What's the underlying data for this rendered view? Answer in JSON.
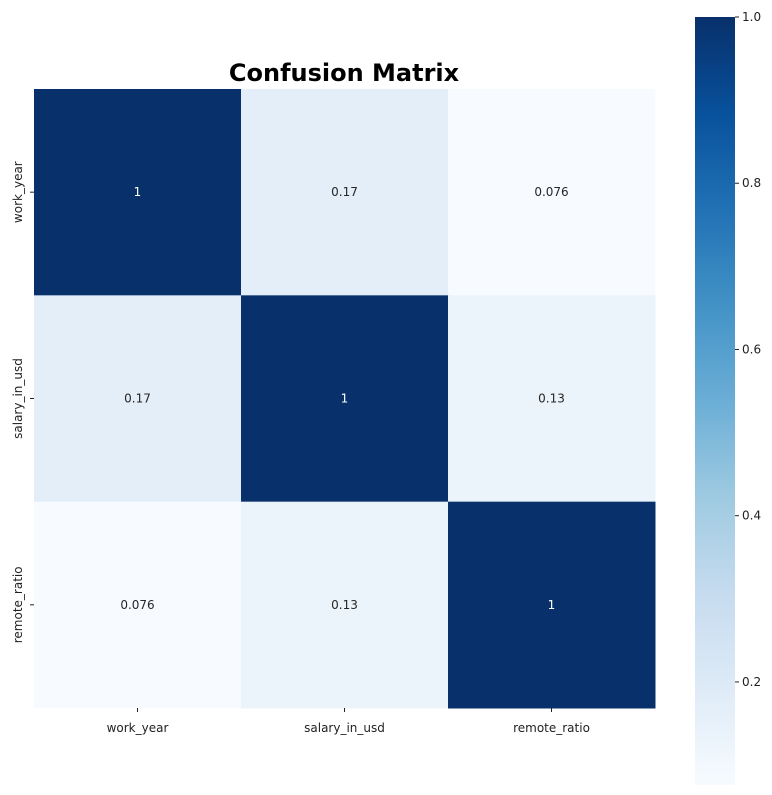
{
  "chart_data": {
    "type": "heatmap",
    "title": "Confusion Matrix",
    "xlabel": "",
    "ylabel": "",
    "x_labels": [
      "work_year",
      "salary_in_usd",
      "remote_ratio"
    ],
    "y_labels": [
      "work_year",
      "salary_in_usd",
      "remote_ratio"
    ],
    "values": [
      [
        1,
        0.17,
        0.076
      ],
      [
        0.17,
        1,
        0.13
      ],
      [
        0.076,
        0.13,
        1
      ]
    ],
    "annotations": [
      [
        "1",
        "0.17",
        "0.076"
      ],
      [
        "0.17",
        "1",
        "0.13"
      ],
      [
        "0.076",
        "0.13",
        "1"
      ]
    ],
    "colormap": "Blues",
    "color_range": [
      0.076,
      1.0
    ],
    "colorbar": {
      "ticks": [
        0.2,
        0.4,
        0.6,
        0.8,
        1.0
      ],
      "tick_labels": [
        "0.2",
        "0.4",
        "0.6",
        "0.8",
        "1.0"
      ],
      "placement": "right"
    },
    "grid": false,
    "legend": "none"
  }
}
